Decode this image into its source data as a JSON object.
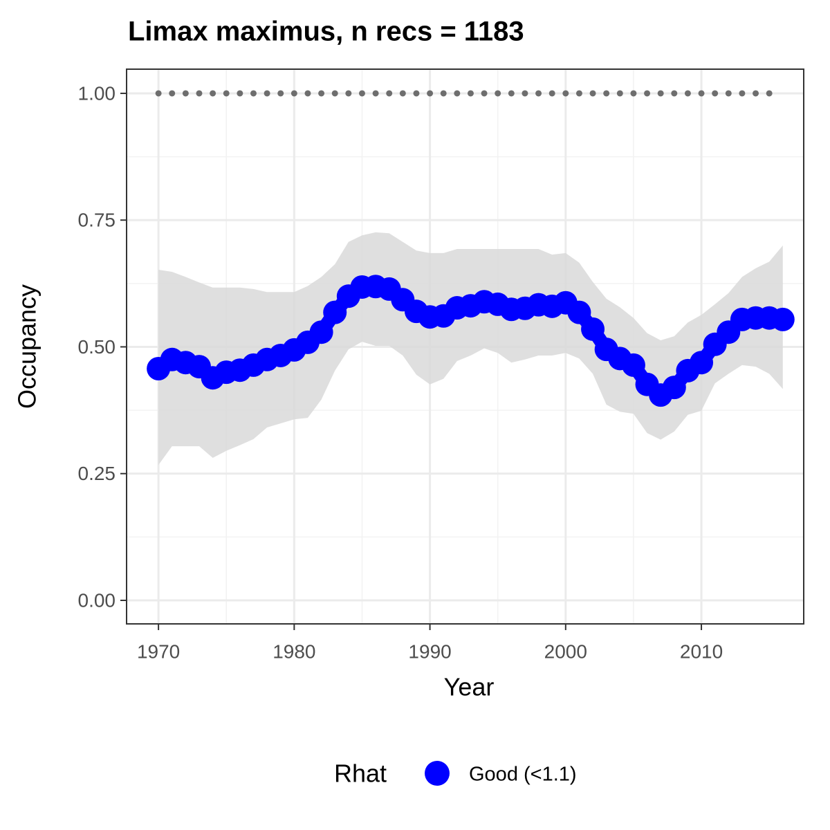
{
  "chart_data": {
    "type": "line",
    "title": "Limax maximus, n recs = 1183",
    "x_label": "Year",
    "y_label": "Occupancy",
    "x": [
      1970,
      1971,
      1972,
      1973,
      1974,
      1975,
      1976,
      1977,
      1978,
      1979,
      1980,
      1981,
      1982,
      1983,
      1984,
      1985,
      1986,
      1987,
      1988,
      1989,
      1990,
      1991,
      1992,
      1993,
      1994,
      1995,
      1996,
      1997,
      1998,
      1999,
      2000,
      2001,
      2002,
      2003,
      2004,
      2005,
      2006,
      2007,
      2008,
      2009,
      2010,
      2011,
      2012,
      2013,
      2014,
      2015,
      2016
    ],
    "series": [
      {
        "name": "Good (<1.1)",
        "color": "#0000ff",
        "values": [
          0.457,
          0.475,
          0.469,
          0.461,
          0.439,
          0.45,
          0.454,
          0.464,
          0.475,
          0.483,
          0.494,
          0.509,
          0.529,
          0.568,
          0.6,
          0.618,
          0.619,
          0.614,
          0.593,
          0.57,
          0.559,
          0.561,
          0.577,
          0.581,
          0.589,
          0.584,
          0.574,
          0.576,
          0.583,
          0.58,
          0.587,
          0.568,
          0.535,
          0.495,
          0.477,
          0.464,
          0.426,
          0.405,
          0.42,
          0.453,
          0.469,
          0.505,
          0.529,
          0.554,
          0.557,
          0.557,
          0.554
        ]
      }
    ],
    "band_upper": [
      0.652,
      0.648,
      0.638,
      0.627,
      0.617,
      0.617,
      0.617,
      0.614,
      0.608,
      0.608,
      0.608,
      0.62,
      0.638,
      0.663,
      0.707,
      0.72,
      0.726,
      0.724,
      0.707,
      0.69,
      0.685,
      0.685,
      0.693,
      0.693,
      0.693,
      0.693,
      0.693,
      0.693,
      0.693,
      0.682,
      0.685,
      0.666,
      0.628,
      0.595,
      0.578,
      0.557,
      0.527,
      0.513,
      0.521,
      0.548,
      0.563,
      0.584,
      0.606,
      0.638,
      0.655,
      0.668,
      0.7
    ],
    "band_lower": [
      0.267,
      0.304,
      0.304,
      0.304,
      0.281,
      0.295,
      0.306,
      0.318,
      0.341,
      0.349,
      0.357,
      0.36,
      0.396,
      0.453,
      0.495,
      0.51,
      0.502,
      0.502,
      0.483,
      0.445,
      0.426,
      0.437,
      0.472,
      0.483,
      0.497,
      0.488,
      0.469,
      0.475,
      0.483,
      0.483,
      0.488,
      0.477,
      0.447,
      0.386,
      0.372,
      0.368,
      0.33,
      0.317,
      0.333,
      0.366,
      0.374,
      0.428,
      0.447,
      0.464,
      0.461,
      0.447,
      0.417
    ],
    "band_color": "#d9d9d9",
    "reference": {
      "color": "#6e6e6e",
      "x": [
        1970,
        1971,
        1972,
        1973,
        1974,
        1975,
        1976,
        1977,
        1978,
        1979,
        1980,
        1981,
        1982,
        1983,
        1984,
        1985,
        1986,
        1987,
        1988,
        1989,
        1990,
        1991,
        1992,
        1993,
        1994,
        1995,
        1996,
        1997,
        1998,
        1999,
        2000,
        2001,
        2002,
        2003,
        2004,
        2005,
        2006,
        2007,
        2008,
        2009,
        2010,
        2011,
        2012,
        2013,
        2014,
        2015
      ],
      "values": [
        1,
        1,
        1,
        1,
        1,
        1,
        1,
        1,
        1,
        1,
        1,
        1,
        1,
        1,
        1,
        1,
        1,
        1,
        1,
        1,
        1,
        1,
        1,
        1,
        1,
        1,
        1,
        1,
        1,
        1,
        1,
        1,
        1,
        1,
        1,
        1,
        1,
        1,
        1,
        1,
        1,
        1,
        1,
        1,
        1,
        1
      ]
    },
    "xlim": [
      1967.65,
      2017.54
    ],
    "ylim": [
      -0.0464,
      1.0477
    ],
    "xticks": [
      1970,
      1980,
      1990,
      2000,
      2010
    ],
    "yticks": [
      {
        "value": 0,
        "label": "0.00"
      },
      {
        "value": 0.25,
        "label": "0.25"
      },
      {
        "value": 0.5,
        "label": "0.50"
      },
      {
        "value": 0.75,
        "label": "0.75"
      },
      {
        "value": 1,
        "label": "1.00"
      }
    ],
    "grid": true,
    "legend": {
      "title": "Rhat",
      "position": "bottom"
    }
  }
}
